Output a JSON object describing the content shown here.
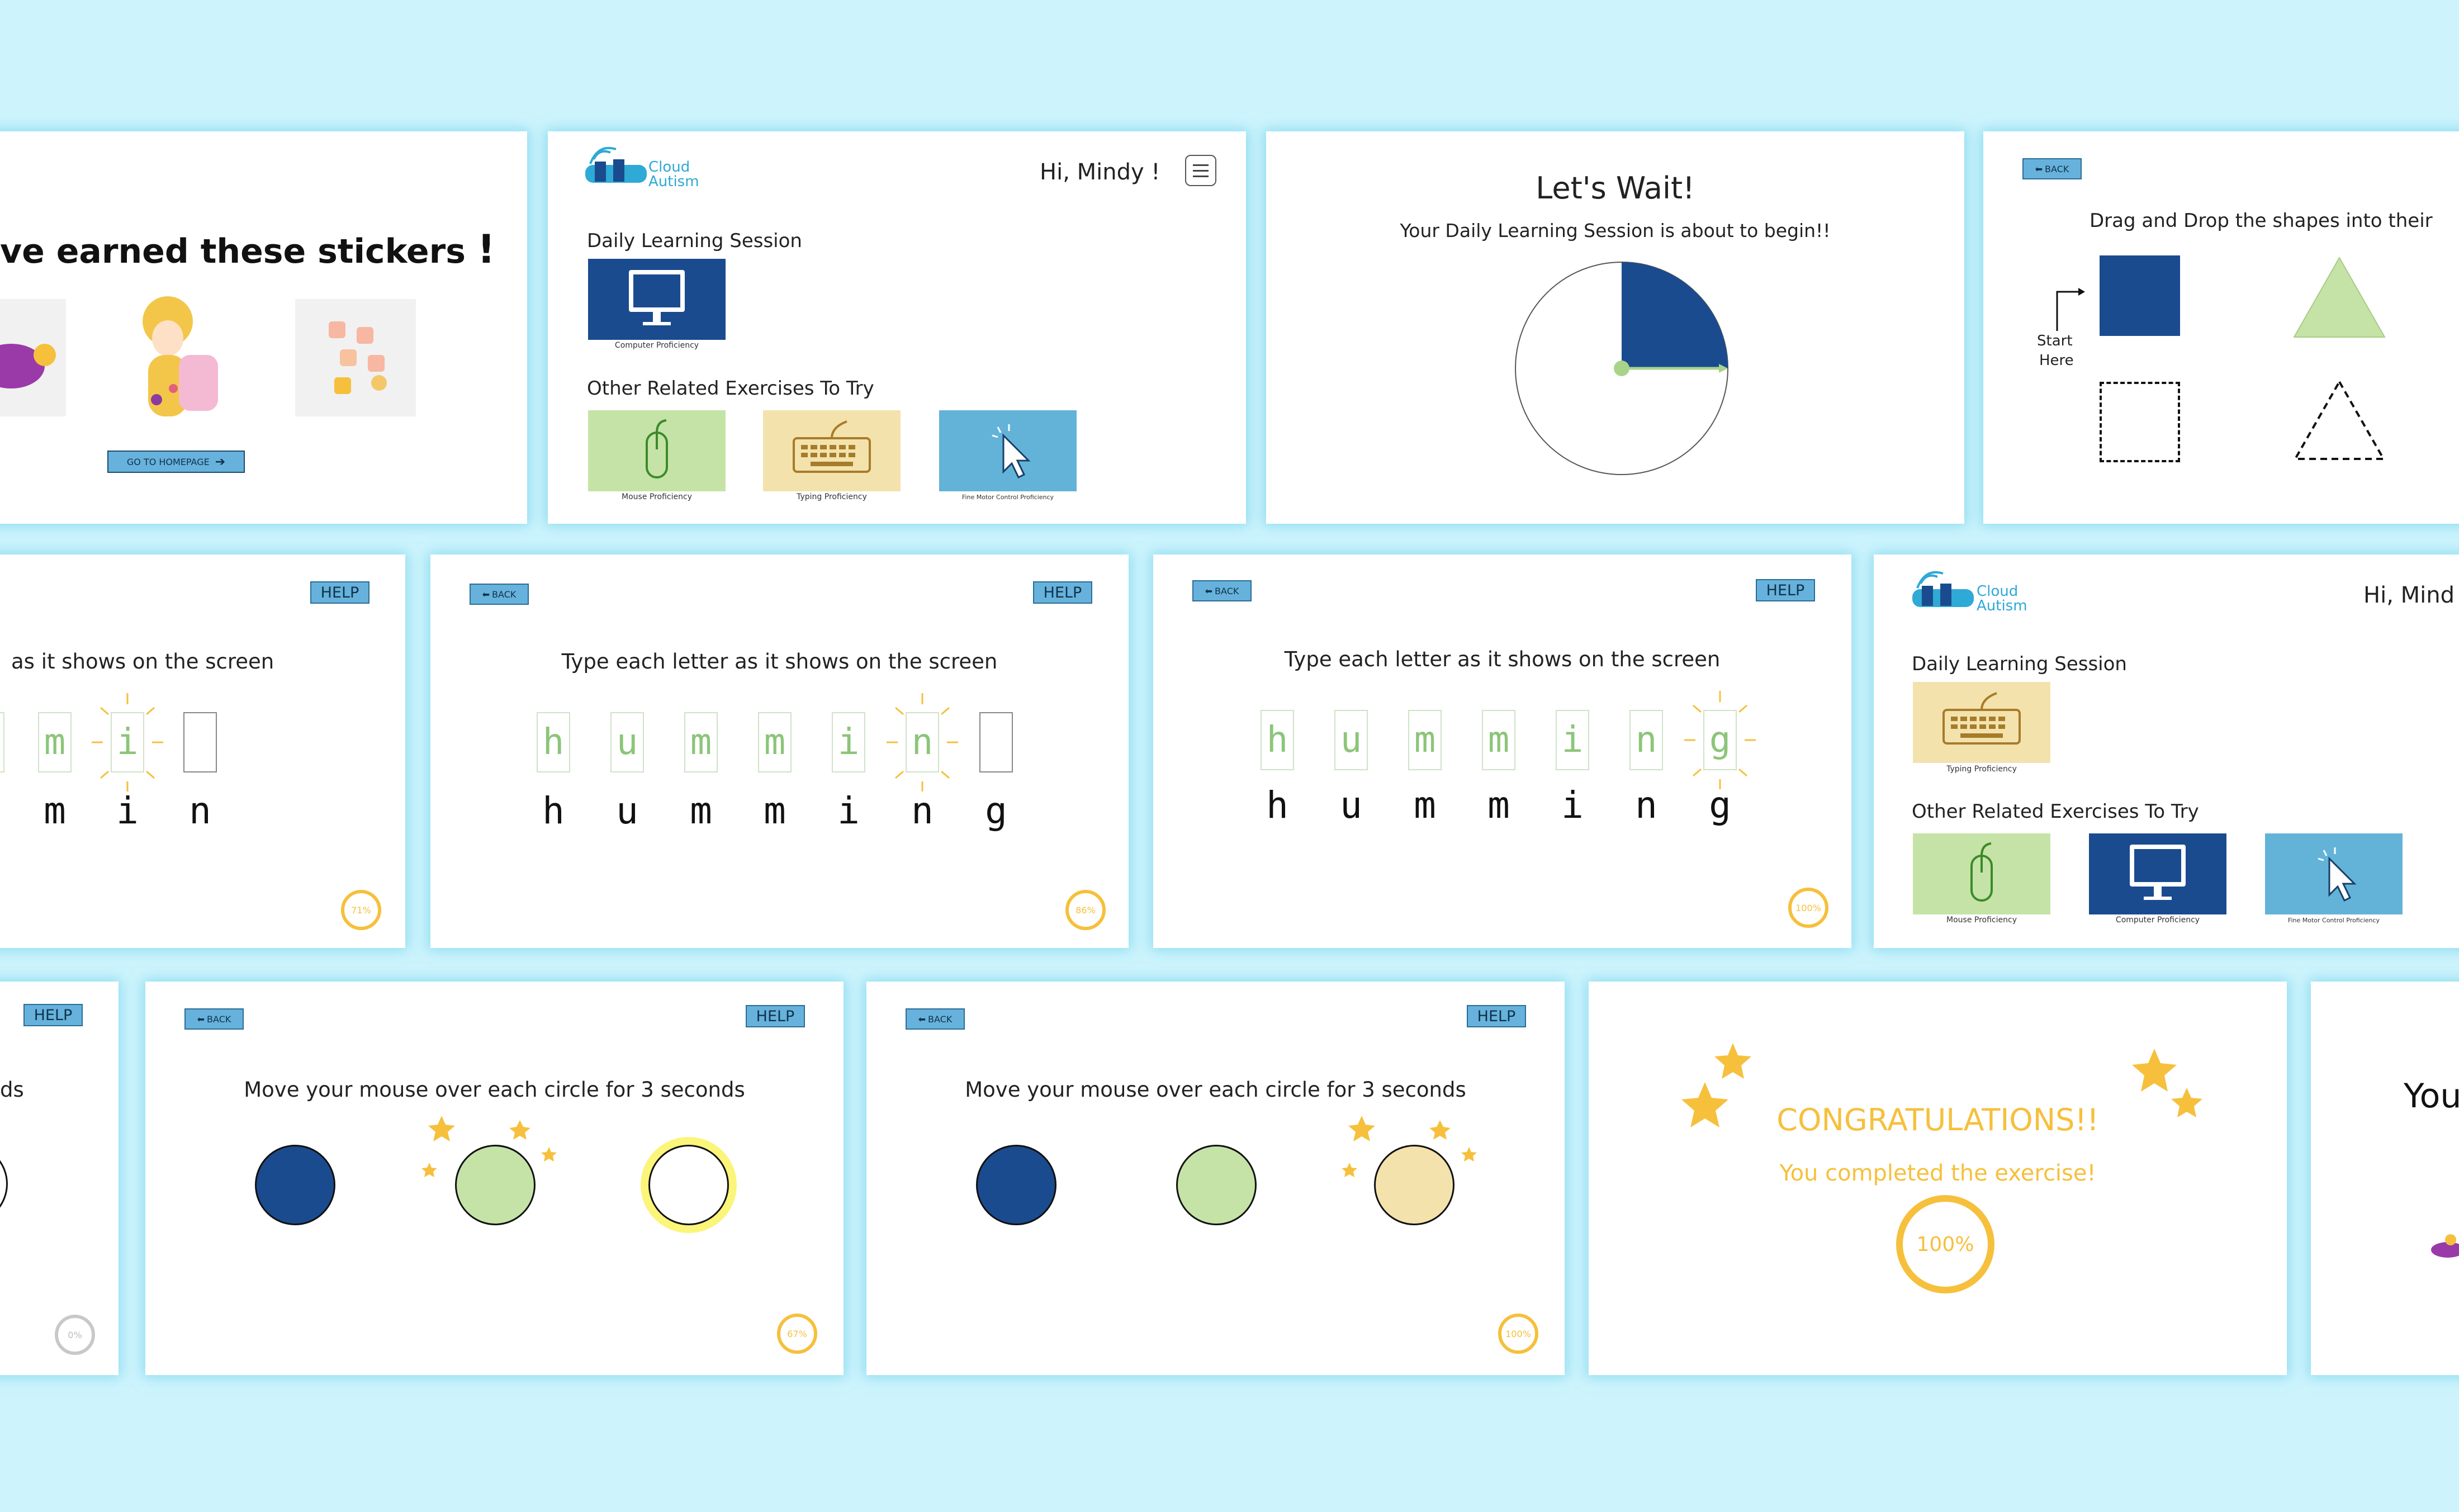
{
  "stickers": {
    "heading": "ve earned these stickers",
    "exclaim": "!",
    "homepage_button": "GO TO HOMEPAGE"
  },
  "home1": {
    "logo": [
      "Cloud",
      "Autism"
    ],
    "greeting": "Hi, Mindy !",
    "daily_title": "Daily Learning Session",
    "daily_tile_label": "Computer Proficiency",
    "other_title": "Other Related Exercises To Try",
    "other_tiles": [
      "Mouse Proficiency",
      "Typing Proficiency",
      "Fine Motor Control Proficiency"
    ]
  },
  "wait": {
    "title": "Let's Wait!",
    "subtitle": "Your Daily Learning Session is about to begin!!"
  },
  "drag": {
    "back": "BACK",
    "instruction": "Drag and Drop the shapes into their",
    "start_here": [
      "Start",
      "Here"
    ]
  },
  "type1": {
    "help": "HELP",
    "instruction": "as it shows on the screen",
    "boxes": [
      "",
      "m",
      "i",
      ""
    ],
    "letters": [
      "m",
      "i",
      "n"
    ],
    "progress": "71%"
  },
  "type2": {
    "back": "BACK",
    "help": "HELP",
    "instruction": "Type each letter as it shows on the screen",
    "boxes": [
      "h",
      "u",
      "m",
      "m",
      "i",
      "n",
      ""
    ],
    "letters": [
      "h",
      "u",
      "m",
      "m",
      "i",
      "n",
      "g"
    ],
    "progress": "86%"
  },
  "type3": {
    "back": "BACK",
    "help": "HELP",
    "instruction": "Type each letter as it shows on the screen",
    "boxes": [
      "h",
      "u",
      "m",
      "m",
      "i",
      "n",
      "g"
    ],
    "letters": [
      "h",
      "u",
      "m",
      "m",
      "i",
      "n",
      "g"
    ],
    "progress": "100%"
  },
  "home2": {
    "logo": [
      "Cloud",
      "Autism"
    ],
    "greeting": "Hi, Mind",
    "daily_title": "Daily Learning Session",
    "daily_tile_label": "Typing Proficiency",
    "other_title": "Other Related Exercises To Try",
    "other_tiles": [
      "Mouse Proficiency",
      "Computer Proficiency",
      "Fine Motor Control Proficiency"
    ]
  },
  "mouse0": {
    "help": "HELP",
    "instruction": "ds",
    "progress": "0%"
  },
  "mouse1": {
    "back": "BACK",
    "help": "HELP",
    "instruction": "Move your mouse over each circle for 3 seconds",
    "progress": "67%"
  },
  "mouse2": {
    "back": "BACK",
    "help": "HELP",
    "instruction": "Move your mouse over each circle for 3 seconds",
    "progress": "100%"
  },
  "congrats": {
    "title": "CONGRATULATIONS!!",
    "subtitle": "You completed the exercise!",
    "progress": "100%"
  },
  "partial": {
    "text": "You"
  },
  "colors": {
    "background": "#cdf4fd",
    "navy": "#1a4b8f",
    "green": "#c5e3a6",
    "cream": "#f4e2ad",
    "sky": "#63b3d9",
    "gold": "#f6c03c"
  }
}
